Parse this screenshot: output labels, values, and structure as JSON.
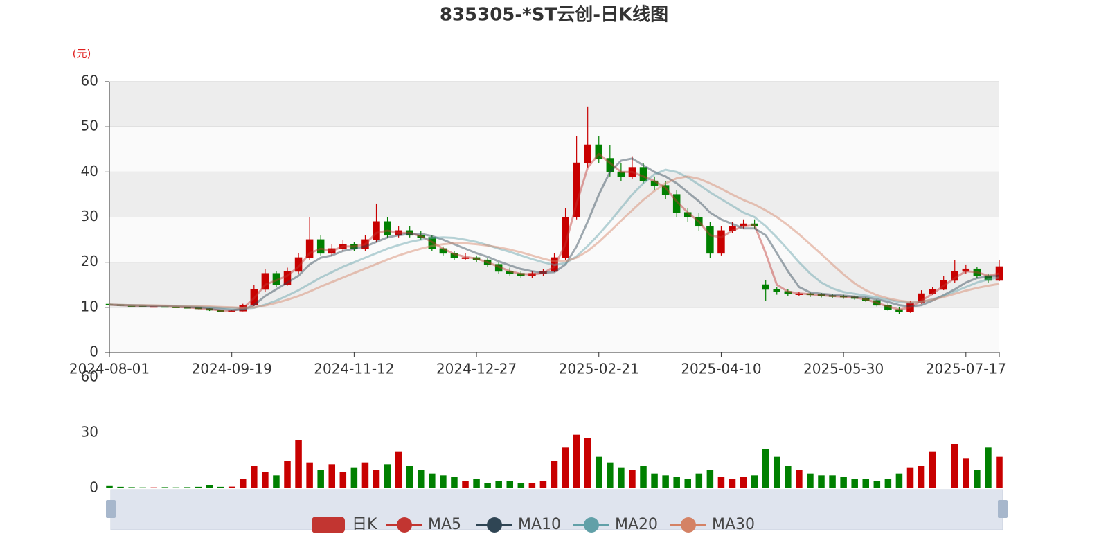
{
  "chart_data": {
    "type": "candlestick",
    "title": "835305-*ST云创-日K线图",
    "unit_label": "(元)",
    "categories": [
      "2024-08-01",
      null,
      null,
      null,
      null,
      null,
      null,
      null,
      null,
      null,
      null,
      "2024-09-19",
      null,
      null,
      null,
      null,
      null,
      null,
      null,
      null,
      null,
      null,
      "2024-11-12",
      null,
      null,
      null,
      null,
      null,
      null,
      null,
      null,
      null,
      null,
      "2024-12-27",
      null,
      null,
      null,
      null,
      null,
      null,
      null,
      null,
      null,
      null,
      "2025-02-21",
      null,
      null,
      null,
      null,
      null,
      null,
      null,
      null,
      null,
      null,
      "2025-04-10",
      null,
      null,
      null,
      null,
      null,
      null,
      null,
      null,
      null,
      null,
      "2025-05-30",
      null,
      null,
      null,
      null,
      null,
      null,
      null,
      null,
      null,
      null,
      "2025-07-17",
      null,
      null,
      null
    ],
    "ylim": [
      0,
      60
    ],
    "yticks": [
      0,
      10,
      20,
      30,
      40,
      50,
      60
    ],
    "grid": true,
    "series": [
      {
        "name": "日K",
        "color": "#c23531",
        "up_color": "#c80000",
        "down_color": "#008000",
        "open": [
          10.7,
          10.6,
          10.4,
          10.3,
          10.2,
          10.2,
          10.1,
          10.0,
          9.9,
          9.7,
          9.4,
          9.1,
          9.2,
          10.5,
          14,
          17.5,
          15,
          18,
          21,
          25,
          22,
          23,
          24,
          23,
          25,
          29,
          26,
          27,
          26,
          25.5,
          23,
          22,
          21,
          21,
          20.5,
          19.5,
          18,
          17.5,
          17,
          17.5,
          18,
          21,
          30,
          42,
          46,
          43,
          40,
          39,
          41,
          38,
          37,
          35,
          31,
          30,
          28,
          22,
          27,
          28,
          28.5,
          15,
          14,
          13.5,
          13,
          13,
          12.8,
          12.6,
          12.5,
          12.3,
          12,
          11.5,
          10.5,
          9.5,
          9,
          11,
          13,
          14,
          16,
          18,
          18.5,
          17,
          16
        ],
        "close": [
          10.6,
          10.4,
          10.3,
          10.2,
          10.2,
          10.1,
          10.0,
          9.9,
          9.7,
          9.4,
          9.1,
          9.2,
          10.5,
          14,
          17.5,
          15,
          18,
          21,
          25,
          22,
          23,
          24,
          23,
          25,
          29,
          26,
          27,
          26,
          25.5,
          23,
          22,
          21,
          21,
          20.5,
          19.5,
          18,
          17.5,
          17,
          17.5,
          18,
          21,
          30,
          42,
          46,
          43,
          40,
          39,
          41,
          38,
          37,
          35,
          31,
          30,
          28,
          22,
          27,
          28,
          28.5,
          28,
          14,
          13.5,
          13,
          13,
          12.8,
          12.6,
          12.5,
          12.3,
          12,
          11.5,
          10.5,
          9.5,
          9,
          11,
          13,
          14,
          16,
          18,
          18.5,
          17,
          16,
          19
        ],
        "low": [
          10.5,
          10.3,
          10.2,
          10.1,
          10.0,
          10.0,
          9.9,
          9.8,
          9.6,
          9.2,
          8.9,
          9.0,
          9.1,
          10.3,
          13.5,
          14.5,
          14.8,
          17.5,
          20.5,
          21.5,
          21.5,
          22.5,
          22.5,
          22.5,
          24.5,
          25.5,
          25.5,
          25.5,
          25,
          22.5,
          21.5,
          20.5,
          20.5,
          20,
          19,
          17.5,
          17,
          16.5,
          16.5,
          17,
          17.8,
          20.5,
          29.5,
          41,
          42,
          39,
          38,
          38.5,
          37.5,
          36,
          34,
          30,
          29,
          27,
          21,
          21.5,
          26.5,
          27.5,
          27.5,
          11.5,
          12.8,
          12.5,
          12.5,
          12.3,
          12.2,
          12.1,
          11.9,
          11.7,
          11.2,
          10.2,
          9.2,
          8.5,
          8.8,
          10.8,
          12.8,
          13.8,
          15.5,
          17.5,
          16.5,
          15.5,
          15.8
        ],
        "high": [
          10.9,
          10.7,
          10.5,
          10.4,
          10.3,
          10.3,
          10.2,
          10.1,
          10.0,
          9.8,
          9.5,
          9.4,
          10.8,
          15,
          18.5,
          18,
          18.8,
          22,
          30,
          26,
          24,
          25,
          24.5,
          26,
          33,
          30,
          28,
          28,
          27,
          26,
          23.5,
          22.5,
          22,
          21.5,
          21,
          20,
          18.8,
          18,
          18,
          18.5,
          22,
          32,
          48,
          54.5,
          48,
          46,
          42,
          43.5,
          42,
          39,
          38,
          36,
          32,
          31,
          29,
          28,
          29,
          29.5,
          29.5,
          16,
          14.5,
          14,
          13.5,
          13.3,
          13.2,
          13,
          12.8,
          12.6,
          12.3,
          11.8,
          11,
          10,
          11.5,
          13.8,
          14.5,
          17,
          20.5,
          19.5,
          19,
          17.5,
          20.5
        ]
      },
      {
        "name": "MA5",
        "color": "#c23531",
        "values": [
          10.6,
          10.5,
          10.4,
          10.3,
          10.2,
          10.2,
          10.1,
          10.0,
          9.8,
          9.6,
          9.3,
          9.2,
          9.8,
          12.0,
          15.0,
          16.0,
          17.0,
          19.0,
          22.0,
          23.0,
          22.5,
          23.5,
          23.5,
          24.0,
          26.5,
          27.0,
          26.5,
          26.5,
          25.8,
          24.5,
          23.0,
          21.8,
          21.2,
          20.8,
          20.0,
          19.0,
          18.0,
          17.4,
          17.3,
          17.6,
          19.0,
          24.0,
          33.0,
          41.0,
          44.0,
          42.0,
          40.0,
          40.0,
          39.0,
          38.0,
          36.5,
          33.5,
          31.0,
          29.0,
          26.0,
          25.5,
          27.0,
          28.0,
          28.2,
          22.0,
          15.0,
          13.5,
          13.1,
          12.9,
          12.7,
          12.5,
          12.4,
          12.2,
          11.8,
          11.0,
          10.2,
          9.5,
          10.0,
          11.5,
          13.0,
          14.8,
          16.5,
          18.0,
          17.8,
          17.0,
          17.5
        ]
      },
      {
        "name": "MA10",
        "color": "#2f4554",
        "values": [
          10.6,
          10.5,
          10.45,
          10.4,
          10.3,
          10.25,
          10.2,
          10.1,
          10.0,
          9.85,
          9.65,
          9.45,
          9.5,
          10.5,
          12.5,
          14.0,
          15.5,
          17.0,
          19.5,
          21.0,
          21.5,
          22.5,
          23.0,
          23.5,
          24.5,
          25.5,
          26.0,
          26.3,
          26.3,
          25.8,
          25.0,
          24.0,
          23.0,
          22.0,
          21.2,
          20.2,
          19.3,
          18.5,
          18.0,
          17.7,
          17.8,
          19.5,
          23.5,
          29.0,
          35.0,
          40.0,
          42.5,
          43.0,
          41.5,
          40.0,
          39.0,
          37.5,
          35.5,
          33.5,
          31.0,
          29.5,
          28.5,
          27.5,
          27.5,
          26.0,
          22.0,
          18.0,
          14.5,
          13.3,
          13.0,
          12.8,
          12.6,
          12.4,
          12.2,
          11.8,
          11.2,
          10.5,
          10.2,
          10.5,
          11.5,
          12.7,
          14.0,
          15.5,
          16.5,
          16.8,
          17.0
        ]
      },
      {
        "name": "MA20",
        "color": "#61a0a8",
        "values": [
          10.6,
          10.55,
          10.5,
          10.45,
          10.4,
          10.35,
          10.3,
          10.25,
          10.15,
          10.05,
          9.95,
          9.8,
          9.7,
          9.9,
          10.6,
          11.5,
          12.6,
          13.8,
          15.2,
          16.6,
          17.8,
          19.0,
          20.0,
          21.0,
          22.0,
          23.0,
          23.8,
          24.5,
          25.0,
          25.4,
          25.5,
          25.4,
          25.0,
          24.5,
          23.8,
          23.0,
          22.3,
          21.5,
          20.7,
          20.0,
          19.4,
          19.8,
          21.3,
          23.6,
          26.2,
          29.0,
          32.0,
          35.0,
          37.5,
          39.5,
          40.5,
          40.0,
          38.8,
          37.2,
          35.5,
          34.0,
          32.5,
          31.0,
          30.0,
          28.0,
          25.5,
          22.8,
          20.0,
          17.5,
          15.5,
          14.2,
          13.4,
          13.0,
          12.6,
          12.2,
          11.7,
          11.2,
          11.0,
          11.2,
          11.8,
          12.5,
          13.5,
          14.5,
          15.5,
          16.2,
          16.6
        ]
      },
      {
        "name": "MA30",
        "color": "#d48265",
        "values": [
          10.6,
          10.55,
          10.5,
          10.5,
          10.45,
          10.4,
          10.35,
          10.3,
          10.25,
          10.2,
          10.1,
          10.0,
          9.9,
          10.0,
          10.4,
          11.0,
          11.7,
          12.5,
          13.5,
          14.6,
          15.6,
          16.6,
          17.6,
          18.6,
          19.6,
          20.6,
          21.5,
          22.3,
          23.0,
          23.6,
          24.0,
          24.2,
          24.2,
          24.0,
          23.7,
          23.3,
          22.8,
          22.2,
          21.5,
          20.8,
          20.2,
          20.2,
          21.0,
          22.5,
          24.5,
          26.8,
          29.2,
          31.5,
          33.8,
          35.8,
          37.5,
          38.6,
          39.0,
          38.5,
          37.5,
          36.3,
          35.0,
          33.8,
          32.8,
          31.5,
          30.0,
          28.2,
          26.2,
          24.0,
          21.8,
          19.5,
          17.3,
          15.3,
          13.8,
          12.7,
          12.0,
          11.5,
          11.2,
          11.3,
          11.7,
          12.3,
          13.0,
          13.7,
          14.3,
          14.8,
          15.2
        ]
      }
    ],
    "volume": {
      "ylim": [
        0,
        60
      ],
      "yticks": [
        0,
        30,
        60
      ],
      "values": [
        1.2,
        0.8,
        0.6,
        0.5,
        0.5,
        0.6,
        0.5,
        0.6,
        0.8,
        1.5,
        0.8,
        0.9,
        5,
        12,
        9,
        7,
        15,
        26,
        14,
        10,
        13,
        9,
        11,
        14,
        10,
        13,
        20,
        12,
        10,
        8,
        7,
        6,
        4,
        5,
        3,
        4,
        4,
        3,
        3,
        4,
        15,
        22,
        29,
        27,
        17,
        14,
        11,
        10,
        12,
        8,
        7,
        6,
        5,
        8,
        10,
        6,
        5,
        6,
        7,
        21,
        17,
        12,
        10,
        8,
        7,
        7,
        6,
        5,
        5,
        4,
        5,
        8,
        11,
        12,
        20,
        0,
        24,
        16,
        10,
        22,
        17
      ]
    }
  }
}
